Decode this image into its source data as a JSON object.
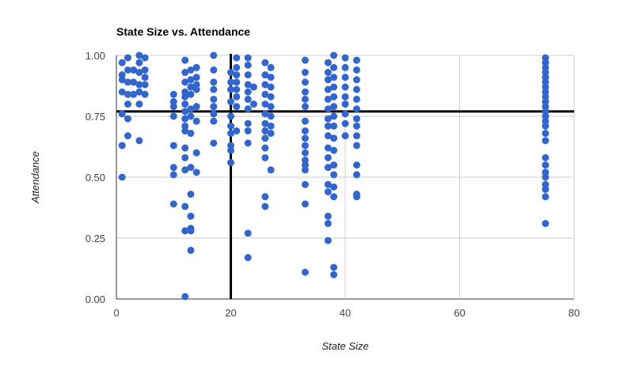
{
  "chart_data": {
    "type": "scatter",
    "title": "State Size vs. Attendance",
    "xlabel": "State Size",
    "ylabel": "Attendance",
    "xlim": [
      0,
      80
    ],
    "ylim": [
      0,
      1
    ],
    "x_ticks": [
      0,
      20,
      40,
      60,
      80
    ],
    "x_tick_labels": [
      "0",
      "20",
      "40",
      "60",
      "80"
    ],
    "y_ticks": [
      0,
      0.25,
      0.5,
      0.75,
      1
    ],
    "y_tick_labels": [
      "0.00",
      "0.25",
      "0.50",
      "0.75",
      "1.00"
    ],
    "grid": true,
    "legend": "none",
    "point_color": "#3366cc",
    "reference_lines": {
      "x": 20,
      "y": 0.77,
      "color": "#000000"
    },
    "points": [
      {
        "x": 1,
        "y": 0.97
      },
      {
        "x": 1,
        "y": 0.92
      },
      {
        "x": 1,
        "y": 0.9
      },
      {
        "x": 1,
        "y": 0.85
      },
      {
        "x": 1,
        "y": 0.76
      },
      {
        "x": 1,
        "y": 0.63
      },
      {
        "x": 1,
        "y": 0.5
      },
      {
        "x": 2,
        "y": 0.99
      },
      {
        "x": 2,
        "y": 0.94
      },
      {
        "x": 2,
        "y": 0.89
      },
      {
        "x": 2,
        "y": 0.84
      },
      {
        "x": 2,
        "y": 0.8
      },
      {
        "x": 2,
        "y": 0.74
      },
      {
        "x": 2,
        "y": 0.67
      },
      {
        "x": 3,
        "y": 0.94
      },
      {
        "x": 3,
        "y": 0.89
      },
      {
        "x": 3,
        "y": 0.84
      },
      {
        "x": 4,
        "y": 1.0
      },
      {
        "x": 4,
        "y": 0.97
      },
      {
        "x": 4,
        "y": 0.93
      },
      {
        "x": 4,
        "y": 0.88
      },
      {
        "x": 4,
        "y": 0.85
      },
      {
        "x": 4,
        "y": 0.8
      },
      {
        "x": 4,
        "y": 0.65
      },
      {
        "x": 5,
        "y": 0.99
      },
      {
        "x": 5,
        "y": 0.94
      },
      {
        "x": 5,
        "y": 0.91
      },
      {
        "x": 5,
        "y": 0.88
      },
      {
        "x": 5,
        "y": 0.84
      },
      {
        "x": 10,
        "y": 0.84
      },
      {
        "x": 10,
        "y": 0.81
      },
      {
        "x": 10,
        "y": 0.79
      },
      {
        "x": 10,
        "y": 0.75
      },
      {
        "x": 10,
        "y": 0.63
      },
      {
        "x": 10,
        "y": 0.54
      },
      {
        "x": 10,
        "y": 0.51
      },
      {
        "x": 10,
        "y": 0.39
      },
      {
        "x": 12,
        "y": 0.98
      },
      {
        "x": 12,
        "y": 0.93
      },
      {
        "x": 12,
        "y": 0.89
      },
      {
        "x": 12,
        "y": 0.85
      },
      {
        "x": 12,
        "y": 0.83
      },
      {
        "x": 12,
        "y": 0.8
      },
      {
        "x": 12,
        "y": 0.77
      },
      {
        "x": 12,
        "y": 0.74
      },
      {
        "x": 12,
        "y": 0.71
      },
      {
        "x": 12,
        "y": 0.69
      },
      {
        "x": 12,
        "y": 0.62
      },
      {
        "x": 12,
        "y": 0.58
      },
      {
        "x": 12,
        "y": 0.53
      },
      {
        "x": 12,
        "y": 0.38
      },
      {
        "x": 12,
        "y": 0.28
      },
      {
        "x": 12,
        "y": 0.01
      },
      {
        "x": 13,
        "y": 0.94
      },
      {
        "x": 13,
        "y": 0.9
      },
      {
        "x": 13,
        "y": 0.87
      },
      {
        "x": 13,
        "y": 0.84
      },
      {
        "x": 13,
        "y": 0.78
      },
      {
        "x": 13,
        "y": 0.75
      },
      {
        "x": 13,
        "y": 0.68
      },
      {
        "x": 13,
        "y": 0.54
      },
      {
        "x": 13,
        "y": 0.43
      },
      {
        "x": 13,
        "y": 0.34
      },
      {
        "x": 13,
        "y": 0.29
      },
      {
        "x": 13,
        "y": 0.28
      },
      {
        "x": 13,
        "y": 0.2
      },
      {
        "x": 14,
        "y": 0.95
      },
      {
        "x": 14,
        "y": 0.91
      },
      {
        "x": 14,
        "y": 0.88
      },
      {
        "x": 14,
        "y": 0.86
      },
      {
        "x": 14,
        "y": 0.79
      },
      {
        "x": 14,
        "y": 0.73
      },
      {
        "x": 14,
        "y": 0.6
      },
      {
        "x": 14,
        "y": 0.52
      },
      {
        "x": 17,
        "y": 1.0
      },
      {
        "x": 17,
        "y": 0.94
      },
      {
        "x": 17,
        "y": 0.89
      },
      {
        "x": 17,
        "y": 0.86
      },
      {
        "x": 17,
        "y": 0.82
      },
      {
        "x": 17,
        "y": 0.79
      },
      {
        "x": 17,
        "y": 0.76
      },
      {
        "x": 17,
        "y": 0.73
      },
      {
        "x": 17,
        "y": 0.64
      },
      {
        "x": 20,
        "y": 0.93
      },
      {
        "x": 20,
        "y": 0.89
      },
      {
        "x": 20,
        "y": 0.86
      },
      {
        "x": 20,
        "y": 0.81
      },
      {
        "x": 20,
        "y": 0.75
      },
      {
        "x": 20,
        "y": 0.71
      },
      {
        "x": 20,
        "y": 0.68
      },
      {
        "x": 20,
        "y": 0.63
      },
      {
        "x": 20,
        "y": 0.61
      },
      {
        "x": 20,
        "y": 0.56
      },
      {
        "x": 21,
        "y": 0.99
      },
      {
        "x": 21,
        "y": 0.95
      },
      {
        "x": 21,
        "y": 0.92
      },
      {
        "x": 21,
        "y": 0.89
      },
      {
        "x": 21,
        "y": 0.86
      },
      {
        "x": 21,
        "y": 0.83
      },
      {
        "x": 21,
        "y": 0.79
      },
      {
        "x": 21,
        "y": 0.69
      },
      {
        "x": 23,
        "y": 0.99
      },
      {
        "x": 23,
        "y": 0.96
      },
      {
        "x": 23,
        "y": 0.92
      },
      {
        "x": 23,
        "y": 0.88
      },
      {
        "x": 23,
        "y": 0.85
      },
      {
        "x": 23,
        "y": 0.82
      },
      {
        "x": 23,
        "y": 0.78
      },
      {
        "x": 23,
        "y": 0.72
      },
      {
        "x": 23,
        "y": 0.69
      },
      {
        "x": 23,
        "y": 0.64
      },
      {
        "x": 23,
        "y": 0.27
      },
      {
        "x": 23,
        "y": 0.17
      },
      {
        "x": 24,
        "y": 0.87
      },
      {
        "x": 24,
        "y": 0.8
      },
      {
        "x": 26,
        "y": 0.97
      },
      {
        "x": 26,
        "y": 0.92
      },
      {
        "x": 26,
        "y": 0.88
      },
      {
        "x": 26,
        "y": 0.84
      },
      {
        "x": 26,
        "y": 0.8
      },
      {
        "x": 26,
        "y": 0.76
      },
      {
        "x": 26,
        "y": 0.72
      },
      {
        "x": 26,
        "y": 0.69
      },
      {
        "x": 26,
        "y": 0.66
      },
      {
        "x": 26,
        "y": 0.62
      },
      {
        "x": 26,
        "y": 0.58
      },
      {
        "x": 26,
        "y": 0.42
      },
      {
        "x": 26,
        "y": 0.38
      },
      {
        "x": 27,
        "y": 0.95
      },
      {
        "x": 27,
        "y": 0.91
      },
      {
        "x": 27,
        "y": 0.87
      },
      {
        "x": 27,
        "y": 0.83
      },
      {
        "x": 27,
        "y": 0.79
      },
      {
        "x": 27,
        "y": 0.75
      },
      {
        "x": 27,
        "y": 0.71
      },
      {
        "x": 27,
        "y": 0.68
      },
      {
        "x": 27,
        "y": 0.53
      },
      {
        "x": 33,
        "y": 0.98
      },
      {
        "x": 33,
        "y": 0.93
      },
      {
        "x": 33,
        "y": 0.89
      },
      {
        "x": 33,
        "y": 0.85
      },
      {
        "x": 33,
        "y": 0.82
      },
      {
        "x": 33,
        "y": 0.79
      },
      {
        "x": 33,
        "y": 0.73
      },
      {
        "x": 33,
        "y": 0.69
      },
      {
        "x": 33,
        "y": 0.66
      },
      {
        "x": 33,
        "y": 0.63
      },
      {
        "x": 33,
        "y": 0.6
      },
      {
        "x": 33,
        "y": 0.57
      },
      {
        "x": 33,
        "y": 0.55
      },
      {
        "x": 33,
        "y": 0.53
      },
      {
        "x": 33,
        "y": 0.47
      },
      {
        "x": 33,
        "y": 0.39
      },
      {
        "x": 33,
        "y": 0.11
      },
      {
        "x": 37,
        "y": 0.97
      },
      {
        "x": 37,
        "y": 0.93
      },
      {
        "x": 37,
        "y": 0.9
      },
      {
        "x": 37,
        "y": 0.86
      },
      {
        "x": 37,
        "y": 0.82
      },
      {
        "x": 37,
        "y": 0.78
      },
      {
        "x": 37,
        "y": 0.74
      },
      {
        "x": 37,
        "y": 0.71
      },
      {
        "x": 37,
        "y": 0.67
      },
      {
        "x": 37,
        "y": 0.62
      },
      {
        "x": 37,
        "y": 0.58
      },
      {
        "x": 37,
        "y": 0.54
      },
      {
        "x": 37,
        "y": 0.47
      },
      {
        "x": 37,
        "y": 0.44
      },
      {
        "x": 37,
        "y": 0.34
      },
      {
        "x": 37,
        "y": 0.31
      },
      {
        "x": 37,
        "y": 0.24
      },
      {
        "x": 38,
        "y": 1.0
      },
      {
        "x": 38,
        "y": 0.95
      },
      {
        "x": 38,
        "y": 0.91
      },
      {
        "x": 38,
        "y": 0.87
      },
      {
        "x": 38,
        "y": 0.83
      },
      {
        "x": 38,
        "y": 0.79
      },
      {
        "x": 38,
        "y": 0.75
      },
      {
        "x": 38,
        "y": 0.71
      },
      {
        "x": 38,
        "y": 0.66
      },
      {
        "x": 38,
        "y": 0.61
      },
      {
        "x": 38,
        "y": 0.55
      },
      {
        "x": 38,
        "y": 0.51
      },
      {
        "x": 38,
        "y": 0.46
      },
      {
        "x": 38,
        "y": 0.42
      },
      {
        "x": 38,
        "y": 0.13
      },
      {
        "x": 38,
        "y": 0.1
      },
      {
        "x": 40,
        "y": 0.99
      },
      {
        "x": 40,
        "y": 0.95
      },
      {
        "x": 40,
        "y": 0.91
      },
      {
        "x": 40,
        "y": 0.87
      },
      {
        "x": 40,
        "y": 0.83
      },
      {
        "x": 40,
        "y": 0.8
      },
      {
        "x": 40,
        "y": 0.76
      },
      {
        "x": 40,
        "y": 0.72
      },
      {
        "x": 40,
        "y": 0.67
      },
      {
        "x": 42,
        "y": 0.98
      },
      {
        "x": 42,
        "y": 0.94
      },
      {
        "x": 42,
        "y": 0.9
      },
      {
        "x": 42,
        "y": 0.86
      },
      {
        "x": 42,
        "y": 0.82
      },
      {
        "x": 42,
        "y": 0.78
      },
      {
        "x": 42,
        "y": 0.74
      },
      {
        "x": 42,
        "y": 0.71
      },
      {
        "x": 42,
        "y": 0.67
      },
      {
        "x": 42,
        "y": 0.63
      },
      {
        "x": 42,
        "y": 0.55
      },
      {
        "x": 42,
        "y": 0.51
      },
      {
        "x": 42,
        "y": 0.43
      },
      {
        "x": 42,
        "y": 0.42
      },
      {
        "x": 75,
        "y": 0.99
      },
      {
        "x": 75,
        "y": 0.97
      },
      {
        "x": 75,
        "y": 0.95
      },
      {
        "x": 75,
        "y": 0.93
      },
      {
        "x": 75,
        "y": 0.91
      },
      {
        "x": 75,
        "y": 0.89
      },
      {
        "x": 75,
        "y": 0.87
      },
      {
        "x": 75,
        "y": 0.85
      },
      {
        "x": 75,
        "y": 0.83
      },
      {
        "x": 75,
        "y": 0.81
      },
      {
        "x": 75,
        "y": 0.79
      },
      {
        "x": 75,
        "y": 0.77
      },
      {
        "x": 75,
        "y": 0.75
      },
      {
        "x": 75,
        "y": 0.73
      },
      {
        "x": 75,
        "y": 0.71
      },
      {
        "x": 75,
        "y": 0.68
      },
      {
        "x": 75,
        "y": 0.65
      },
      {
        "x": 75,
        "y": 0.58
      },
      {
        "x": 75,
        "y": 0.55
      },
      {
        "x": 75,
        "y": 0.52
      },
      {
        "x": 75,
        "y": 0.5
      },
      {
        "x": 75,
        "y": 0.47
      },
      {
        "x": 75,
        "y": 0.45
      },
      {
        "x": 75,
        "y": 0.42
      },
      {
        "x": 75,
        "y": 0.31
      }
    ]
  }
}
